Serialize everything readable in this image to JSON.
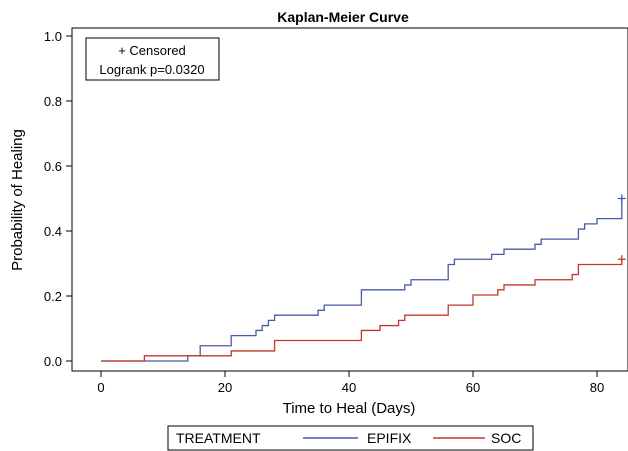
{
  "chart_data": {
    "type": "line",
    "title": "Kaplan-Meier Curve",
    "xlabel": "Time to Heal (Days)",
    "ylabel": "Probability of Healing",
    "xlim": [
      0,
      84
    ],
    "ylim": [
      0.0,
      1.0
    ],
    "x_ticks": [
      "0",
      "20",
      "40",
      "60",
      "80"
    ],
    "y_ticks": [
      "0.0",
      "0.2",
      "0.4",
      "0.6",
      "0.8",
      "1.0"
    ],
    "grid": false,
    "step": true,
    "annotations": {
      "censored": "+ Censored",
      "logrank": "Logrank p=0.0320"
    },
    "legend": {
      "title": "TREATMENT",
      "position": "bottom"
    },
    "series": [
      {
        "name": "EPIFIX",
        "color": "#4a5aa8",
        "x": [
          0,
          13,
          14,
          16,
          21,
          25,
          26,
          27,
          28,
          35,
          36,
          38,
          42,
          49,
          50,
          56,
          57,
          59,
          63,
          65,
          70,
          71,
          77,
          78,
          80,
          82,
          84
        ],
        "y": [
          0.0,
          0.0,
          0.016,
          0.047,
          0.078,
          0.094,
          0.109,
          0.125,
          0.141,
          0.156,
          0.172,
          0.172,
          0.219,
          0.234,
          0.25,
          0.297,
          0.313,
          0.313,
          0.328,
          0.344,
          0.359,
          0.375,
          0.406,
          0.422,
          0.438,
          0.438,
          0.5
        ],
        "censored_at": [
          84
        ]
      },
      {
        "name": "SOC",
        "color": "#c0392b",
        "x": [
          0,
          7,
          13,
          21,
          28,
          42,
          45,
          48,
          49,
          56,
          60,
          64,
          65,
          70,
          76,
          77,
          84
        ],
        "y": [
          0.0,
          0.016,
          0.016,
          0.031,
          0.063,
          0.094,
          0.109,
          0.125,
          0.141,
          0.172,
          0.203,
          0.219,
          0.234,
          0.25,
          0.266,
          0.297,
          0.313
        ],
        "censored_at": [
          84
        ]
      }
    ]
  }
}
